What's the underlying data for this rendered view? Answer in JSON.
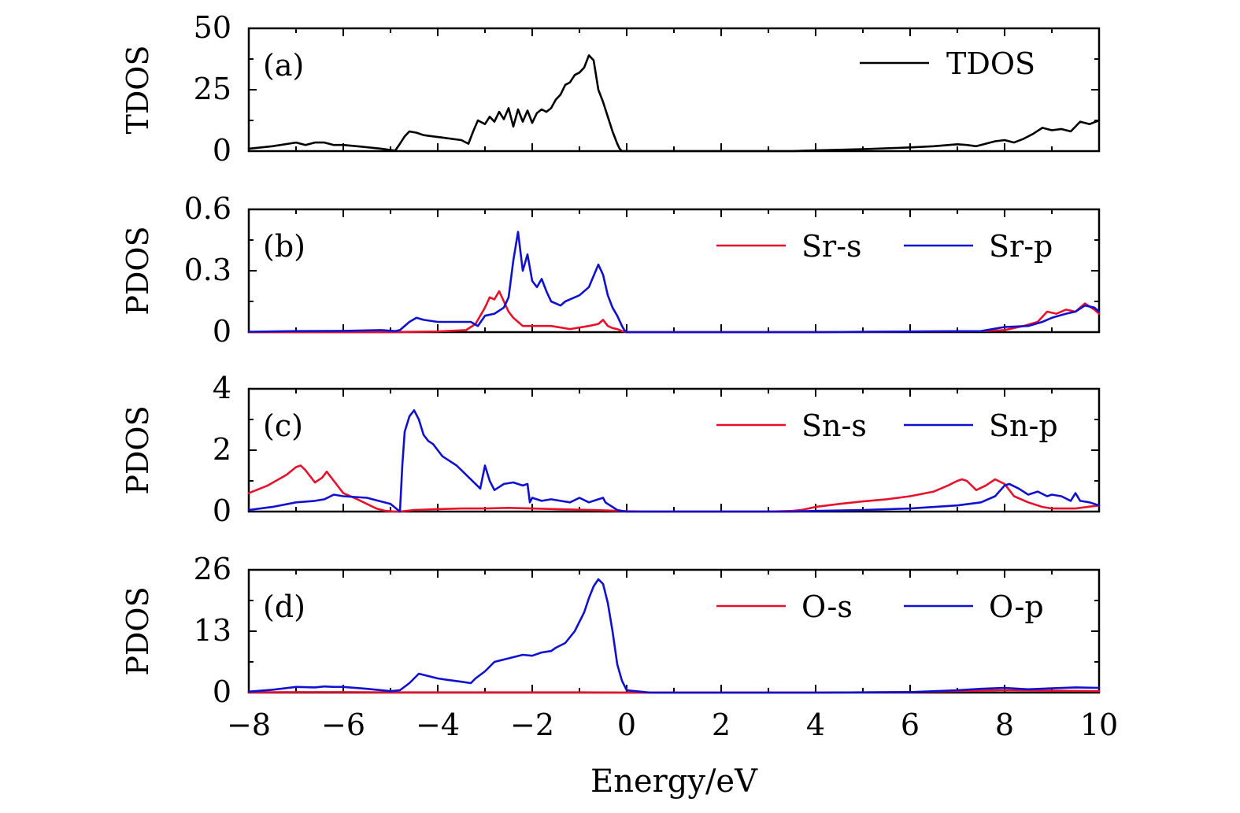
{
  "chart_data": {
    "type": "line",
    "xlabel": "Energy/eV",
    "xlim": [
      -8,
      10
    ],
    "xticks": [
      -8,
      -6,
      -4,
      -2,
      0,
      2,
      4,
      6,
      8,
      10
    ],
    "xtick_labels": [
      "−8",
      "−6",
      "−4",
      "−2",
      "0",
      "2",
      "4",
      "6",
      "8",
      "10"
    ],
    "panels": [
      {
        "tag": "(a)",
        "ylabel": "TDOS",
        "ylim": [
          0,
          50
        ],
        "yticks": [
          0,
          25,
          50
        ],
        "ytick_labels": [
          "0",
          "25",
          "50"
        ],
        "legend_position": "top-right",
        "series": [
          {
            "name": "TDOS",
            "color": "#000000",
            "x": [
              -8,
              -7.5,
              -7,
              -6.8,
              -6.6,
              -6.4,
              -6.2,
              -6,
              -5.6,
              -5.2,
              -4.9,
              -4.8,
              -4.7,
              -4.6,
              -4.45,
              -4.3,
              -4.1,
              -3.9,
              -3.7,
              -3.5,
              -3.35,
              -3.25,
              -3.15,
              -3.0,
              -2.9,
              -2.8,
              -2.7,
              -2.6,
              -2.5,
              -2.4,
              -2.3,
              -2.2,
              -2.1,
              -2.0,
              -1.9,
              -1.8,
              -1.7,
              -1.6,
              -1.5,
              -1.4,
              -1.3,
              -1.2,
              -1.1,
              -1.0,
              -0.9,
              -0.8,
              -0.7,
              -0.6,
              -0.5,
              -0.4,
              -0.3,
              -0.2,
              -0.15,
              -0.1,
              -0.05,
              0.0,
              0.5,
              2,
              3,
              3.5,
              4,
              5,
              6,
              6.5,
              7,
              7.2,
              7.4,
              7.6,
              7.8,
              8.0,
              8.2,
              8.4,
              8.6,
              8.8,
              9.0,
              9.2,
              9.4,
              9.6,
              9.8,
              10
            ],
            "y": [
              1.0,
              2.0,
              3.5,
              2.5,
              3.5,
              3.5,
              2.5,
              2.5,
              1.8,
              1.0,
              0.2,
              3.0,
              6.0,
              8.0,
              7.5,
              6.5,
              6.0,
              5.5,
              5.0,
              4.5,
              3.0,
              8.0,
              12.5,
              11.0,
              14.0,
              12.0,
              16.0,
              13.0,
              17.5,
              10.0,
              17.0,
              12.0,
              16.5,
              11.5,
              15.5,
              17.0,
              16.0,
              17.5,
              21.0,
              23.0,
              27.0,
              28.0,
              31.0,
              32.0,
              34.0,
              39.0,
              37.0,
              25.0,
              20.0,
              14.0,
              8.0,
              3.0,
              1.0,
              0.0,
              0.0,
              0.0,
              0.0,
              0.0,
              0.0,
              0.0,
              0.3,
              0.8,
              1.5,
              2.0,
              2.8,
              2.5,
              2.0,
              3.0,
              4.0,
              4.5,
              3.5,
              5.0,
              7.0,
              9.5,
              8.5,
              9.0,
              8.0,
              12.0,
              11.0,
              12.5
            ]
          }
        ]
      },
      {
        "tag": "(b)",
        "ylabel": "PDOS",
        "ylim": [
          0,
          0.6
        ],
        "yticks": [
          0,
          0.3,
          0.6
        ],
        "ytick_labels": [
          "0",
          "0.3",
          "0.6"
        ],
        "legend_position": "top-right",
        "series": [
          {
            "name": "Sr-s",
            "color": "#e8102a",
            "x": [
              -8,
              -5,
              -4,
              -3.4,
              -3.2,
              -3.0,
              -2.9,
              -2.8,
              -2.7,
              -2.6,
              -2.5,
              -2.4,
              -2.3,
              -2.2,
              -2.0,
              -1.6,
              -1.2,
              -0.8,
              -0.6,
              -0.5,
              -0.4,
              -0.3,
              -0.2,
              -0.1,
              0,
              4,
              7.5,
              8.0,
              8.4,
              8.7,
              8.9,
              9.1,
              9.3,
              9.5,
              9.7,
              9.9,
              10
            ],
            "y": [
              0,
              0,
              0.003,
              0.01,
              0.04,
              0.12,
              0.17,
              0.16,
              0.2,
              0.15,
              0.1,
              0.07,
              0.05,
              0.03,
              0.03,
              0.03,
              0.015,
              0.03,
              0.04,
              0.06,
              0.03,
              0.02,
              0.015,
              0.005,
              0,
              0,
              0.005,
              0.01,
              0.03,
              0.05,
              0.1,
              0.09,
              0.11,
              0.1,
              0.14,
              0.11,
              0.09
            ]
          },
          {
            "name": "Sr-p",
            "color": "#1010d0",
            "x": [
              -8,
              -7,
              -6,
              -5.2,
              -4.9,
              -4.8,
              -4.6,
              -4.45,
              -4.3,
              -4.0,
              -3.6,
              -3.3,
              -3.15,
              -3.0,
              -2.8,
              -2.6,
              -2.5,
              -2.4,
              -2.3,
              -2.2,
              -2.1,
              -2.0,
              -1.9,
              -1.8,
              -1.7,
              -1.6,
              -1.4,
              -1.3,
              -1.0,
              -0.8,
              -0.6,
              -0.5,
              -0.4,
              -0.3,
              -0.2,
              -0.1,
              -0.05,
              0,
              4,
              7.5,
              8.0,
              8.5,
              8.8,
              9.0,
              9.3,
              9.5,
              9.7,
              9.9,
              10
            ],
            "y": [
              0.002,
              0.005,
              0.006,
              0.01,
              0.005,
              0.01,
              0.05,
              0.07,
              0.06,
              0.05,
              0.05,
              0.05,
              0.03,
              0.08,
              0.09,
              0.12,
              0.17,
              0.35,
              0.49,
              0.3,
              0.38,
              0.25,
              0.22,
              0.26,
              0.2,
              0.15,
              0.13,
              0.15,
              0.18,
              0.22,
              0.33,
              0.28,
              0.18,
              0.12,
              0.08,
              0.03,
              0.01,
              0,
              0,
              0.005,
              0.025,
              0.03,
              0.05,
              0.07,
              0.09,
              0.1,
              0.13,
              0.12,
              0.1
            ]
          }
        ]
      },
      {
        "tag": "(c)",
        "ylabel": "PDOS",
        "ylim": [
          0,
          4
        ],
        "yticks": [
          0,
          2,
          4
        ],
        "ytick_labels": [
          "0",
          "2",
          "4"
        ],
        "legend_position": "top-right",
        "series": [
          {
            "name": "Sn-s",
            "color": "#e8102a",
            "x": [
              -8,
              -7.6,
              -7.2,
              -7.0,
              -6.9,
              -6.8,
              -6.6,
              -6.45,
              -6.35,
              -6.2,
              -6.0,
              -5.7,
              -5.5,
              -5.3,
              -5.1,
              -4.9,
              -4.8,
              -4.5,
              -4.0,
              -3.5,
              -3.0,
              -2.5,
              -2.0,
              -1.5,
              -1.0,
              -0.5,
              0,
              0.5,
              3.0,
              3.5,
              3.7,
              4.0,
              4.5,
              5.0,
              5.5,
              6.0,
              6.5,
              6.8,
              7.0,
              7.1,
              7.2,
              7.4,
              7.6,
              7.8,
              8.0,
              8.2,
              8.5,
              8.8,
              9.0,
              9.5,
              10
            ],
            "y": [
              0.6,
              0.85,
              1.2,
              1.45,
              1.5,
              1.35,
              0.95,
              1.1,
              1.3,
              1.0,
              0.6,
              0.4,
              0.25,
              0.1,
              0.02,
              0,
              0,
              0.05,
              0.08,
              0.1,
              0.1,
              0.12,
              0.1,
              0.08,
              0.06,
              0.04,
              0.01,
              0,
              0,
              0.02,
              0.05,
              0.15,
              0.25,
              0.33,
              0.4,
              0.5,
              0.65,
              0.85,
              1.0,
              1.05,
              1.0,
              0.7,
              0.85,
              1.05,
              0.9,
              0.5,
              0.3,
              0.15,
              0.1,
              0.1,
              0.2
            ]
          },
          {
            "name": "Sn-p",
            "color": "#1010d0",
            "x": [
              -8,
              -7.5,
              -7.0,
              -6.6,
              -6.4,
              -6.2,
              -6.0,
              -5.5,
              -5.0,
              -4.8,
              -4.75,
              -4.7,
              -4.6,
              -4.5,
              -4.4,
              -4.3,
              -4.2,
              -4.1,
              -4.0,
              -3.9,
              -3.8,
              -3.6,
              -3.4,
              -3.2,
              -3.1,
              -3.0,
              -2.9,
              -2.8,
              -2.6,
              -2.4,
              -2.2,
              -2.1,
              -2.05,
              -2.0,
              -1.8,
              -1.6,
              -1.4,
              -1.2,
              -1.0,
              -0.8,
              -0.6,
              -0.5,
              -0.45,
              -0.4,
              -0.3,
              -0.2,
              -0.1,
              0,
              3.5,
              4.0,
              5.0,
              6.0,
              7.0,
              7.5,
              7.8,
              8.0,
              8.1,
              8.3,
              8.5,
              8.7,
              8.9,
              9.0,
              9.2,
              9.4,
              9.5,
              9.6,
              9.8,
              10
            ],
            "y": [
              0.05,
              0.15,
              0.3,
              0.35,
              0.4,
              0.55,
              0.5,
              0.45,
              0.25,
              0,
              1.5,
              2.6,
              3.1,
              3.3,
              3.0,
              2.5,
              2.3,
              2.2,
              2.0,
              1.8,
              1.7,
              1.5,
              1.2,
              0.9,
              0.75,
              1.5,
              1.0,
              0.7,
              0.9,
              0.95,
              0.85,
              0.9,
              0.3,
              0.45,
              0.35,
              0.4,
              0.35,
              0.3,
              0.45,
              0.3,
              0.4,
              0.45,
              0.3,
              0.25,
              0.15,
              0.05,
              0.02,
              0,
              0,
              0.02,
              0.05,
              0.1,
              0.2,
              0.3,
              0.5,
              0.85,
              0.9,
              0.75,
              0.55,
              0.65,
              0.5,
              0.55,
              0.5,
              0.35,
              0.6,
              0.35,
              0.3,
              0.2
            ]
          }
        ]
      },
      {
        "tag": "(d)",
        "ylabel": "PDOS",
        "ylim": [
          0,
          26
        ],
        "yticks": [
          0,
          13,
          26
        ],
        "ytick_labels": [
          "0",
          "13",
          "26"
        ],
        "legend_position": "top-right",
        "series": [
          {
            "name": "O-s",
            "color": "#e8102a",
            "x": [
              -8,
              -7,
              -6,
              -5,
              -4,
              -3,
              -2,
              -1,
              0,
              2,
              4,
              6,
              7,
              8,
              9,
              10
            ],
            "y": [
              0.05,
              0.1,
              0.1,
              0.05,
              0.05,
              0.05,
              0.05,
              0.05,
              0,
              0,
              0,
              0.1,
              0.3,
              0.5,
              0.4,
              0.3
            ]
          },
          {
            "name": "O-p",
            "color": "#1010d0",
            "x": [
              -8,
              -7.5,
              -7.0,
              -6.6,
              -6.4,
              -6.2,
              -6.0,
              -5.5,
              -5.0,
              -4.8,
              -4.6,
              -4.4,
              -4.2,
              -4.0,
              -3.8,
              -3.5,
              -3.3,
              -3.2,
              -3.0,
              -2.8,
              -2.6,
              -2.4,
              -2.2,
              -2.0,
              -1.8,
              -1.6,
              -1.5,
              -1.3,
              -1.1,
              -1.0,
              -0.9,
              -0.8,
              -0.7,
              -0.6,
              -0.5,
              -0.4,
              -0.3,
              -0.2,
              -0.1,
              0,
              0.5,
              4,
              6,
              7,
              7.5,
              8,
              8.5,
              9,
              9.5,
              10
            ],
            "y": [
              0.2,
              0.6,
              1.2,
              1.1,
              1.3,
              1.2,
              1.2,
              0.8,
              0.3,
              0.5,
              2.0,
              4.0,
              3.5,
              3.0,
              2.7,
              2.3,
              2.0,
              3.0,
              4.5,
              6.5,
              7.0,
              7.5,
              8.0,
              7.8,
              8.5,
              8.8,
              9.5,
              10.5,
              13.0,
              15.0,
              17.0,
              20.0,
              22.5,
              24.0,
              23.0,
              19.0,
              13.0,
              6.0,
              2.5,
              0.5,
              0,
              0,
              0.1,
              0.5,
              0.8,
              1.0,
              0.7,
              0.9,
              1.1,
              1.0
            ]
          }
        ]
      }
    ]
  }
}
